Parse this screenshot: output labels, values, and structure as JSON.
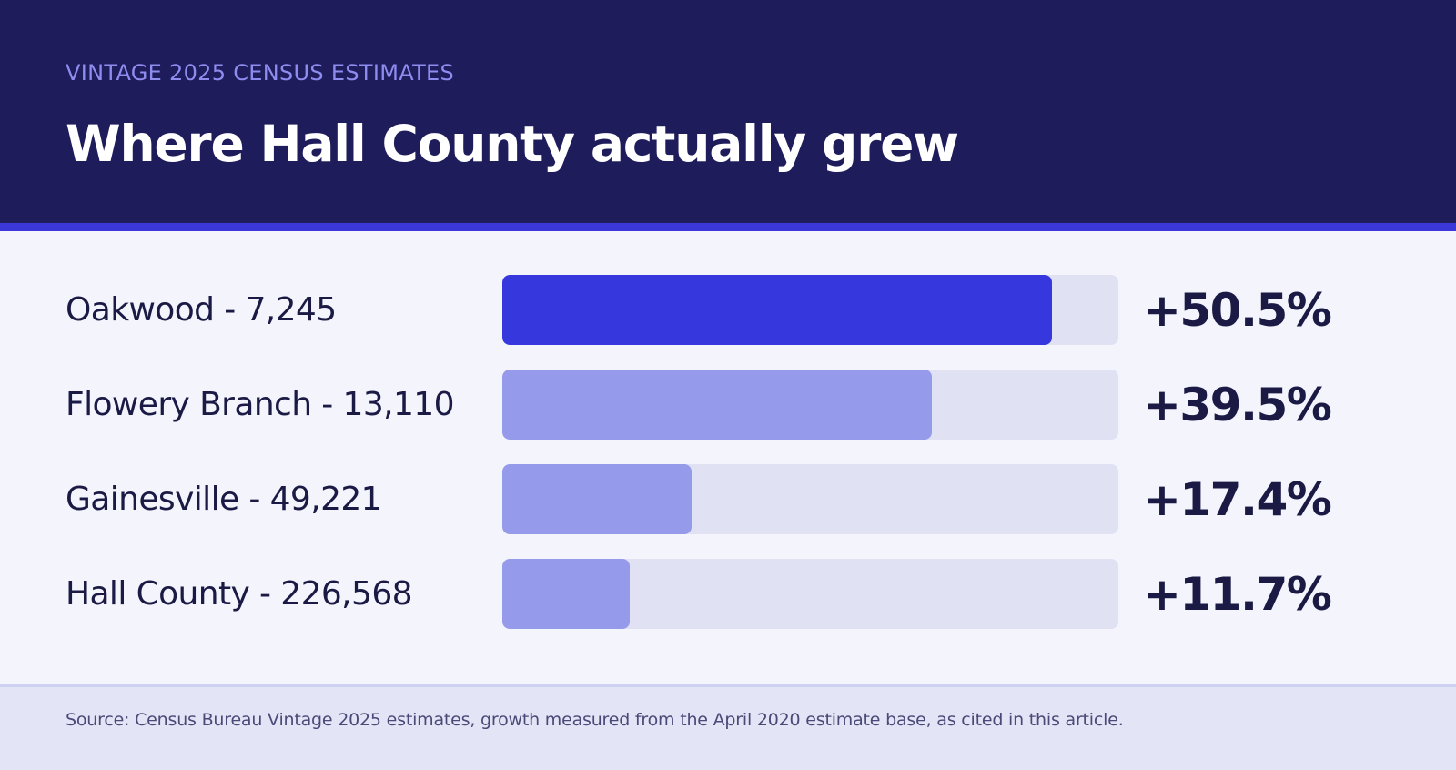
{
  "header": {
    "kicker": "VINTAGE 2025 CENSUS ESTIMATES",
    "title": "Where Hall County actually grew"
  },
  "chart_data": {
    "type": "bar",
    "orientation": "horizontal",
    "categories": [
      "Oakwood - 7,245",
      "Flowery Branch - 13,110",
      "Gainesville - 49,221",
      "Hall County - 226,568"
    ],
    "values": [
      50.5,
      39.5,
      17.4,
      11.7
    ],
    "value_labels": [
      "+50.5%",
      "+39.5%",
      "+17.4%",
      "+11.7%"
    ],
    "xlim": [
      0,
      56.6
    ],
    "highlight_index": 0,
    "colors": {
      "highlight": "#3737de",
      "bar": "#969aea",
      "track": "#e0e2f4"
    },
    "grid": false,
    "legend": "none"
  },
  "footer": {
    "source": "Source: Census Bureau Vintage 2025 estimates, growth measured from the April 2020 estimate base, as cited in this article."
  }
}
